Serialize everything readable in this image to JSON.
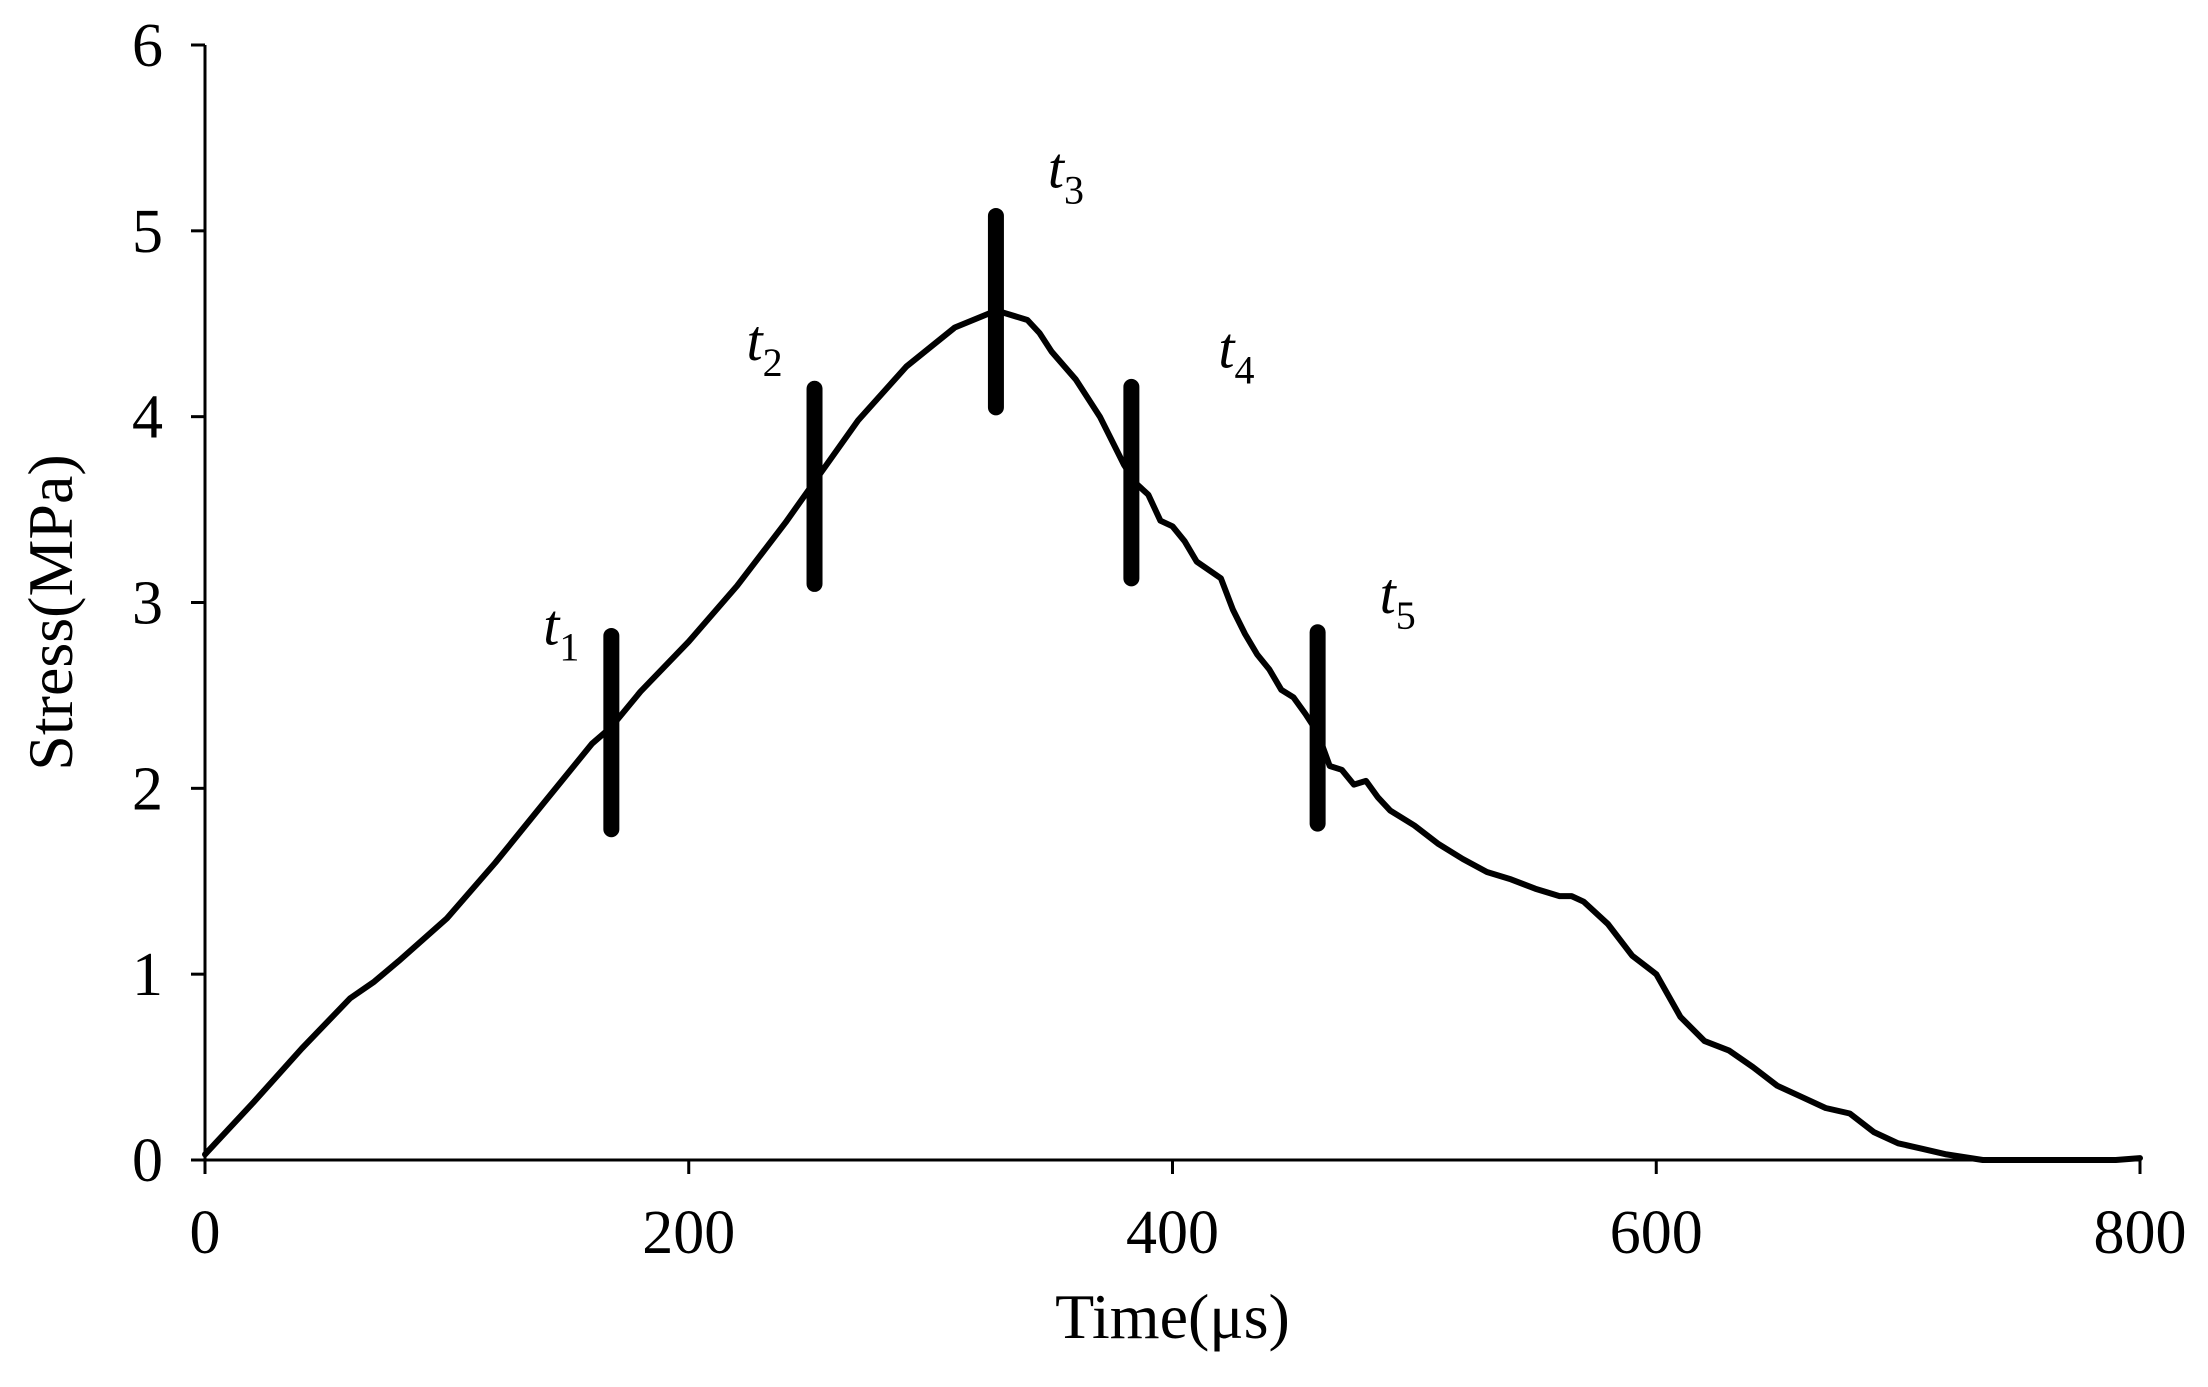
{
  "chart_data": {
    "type": "line",
    "title": "",
    "xlabel": "Time(μs)",
    "ylabel": "Stress(MPa)",
    "xlim": [
      0,
      800
    ],
    "ylim": [
      0,
      6
    ],
    "xticks": [
      0,
      200,
      400,
      600,
      800
    ],
    "yticks": [
      0,
      1,
      2,
      3,
      4,
      5,
      6
    ],
    "grid": false,
    "legend": "none",
    "series": [
      {
        "color": "#000000",
        "x": [
          0,
          20,
          40,
          60,
          70,
          80,
          100,
          120,
          140,
          160,
          168,
          180,
          200,
          220,
          240,
          252,
          270,
          290,
          310,
          325,
          330,
          340,
          345,
          350,
          360,
          370,
          380,
          385,
          390,
          395,
          400,
          405,
          410,
          420,
          425,
          430,
          435,
          440,
          445,
          450,
          455,
          460,
          465,
          470,
          475,
          480,
          485,
          490,
          500,
          510,
          520,
          530,
          540,
          550,
          560,
          565,
          570,
          580,
          590,
          600,
          610,
          620,
          630,
          640,
          650,
          660,
          670,
          680,
          690,
          700,
          710,
          720,
          730,
          735,
          750,
          770,
          790,
          800
        ],
        "y": [
          0.03,
          0.31,
          0.6,
          0.87,
          0.96,
          1.07,
          1.3,
          1.6,
          1.92,
          2.24,
          2.33,
          2.52,
          2.79,
          3.09,
          3.43,
          3.65,
          3.98,
          4.27,
          4.48,
          4.56,
          4.56,
          4.52,
          4.45,
          4.35,
          4.2,
          4.0,
          3.74,
          3.64,
          3.58,
          3.44,
          3.41,
          3.33,
          3.22,
          3.13,
          2.96,
          2.83,
          2.72,
          2.64,
          2.53,
          2.49,
          2.4,
          2.3,
          2.12,
          2.1,
          2.02,
          2.04,
          1.95,
          1.88,
          1.8,
          1.7,
          1.62,
          1.55,
          1.51,
          1.46,
          1.42,
          1.42,
          1.39,
          1.27,
          1.1,
          1.0,
          0.77,
          0.64,
          0.59,
          0.5,
          0.4,
          0.34,
          0.28,
          0.25,
          0.15,
          0.09,
          0.06,
          0.03,
          0.01,
          0.0,
          0.0,
          0.0,
          0.0,
          0.01
        ]
      }
    ],
    "markers": [
      {
        "label": "t",
        "sub": "1",
        "x": 168,
        "y_low": 1.78,
        "y_high": 2.82
      },
      {
        "label": "t",
        "sub": "2",
        "x": 252,
        "y_low": 3.1,
        "y_high": 4.15
      },
      {
        "label": "t",
        "sub": "3",
        "x": 327,
        "y_low": 4.05,
        "y_high": 5.08
      },
      {
        "label": "t",
        "sub": "4",
        "x": 383,
        "y_low": 3.13,
        "y_high": 4.16
      },
      {
        "label": "t",
        "sub": "5",
        "x": 460,
        "y_low": 1.81,
        "y_high": 2.84
      }
    ]
  }
}
